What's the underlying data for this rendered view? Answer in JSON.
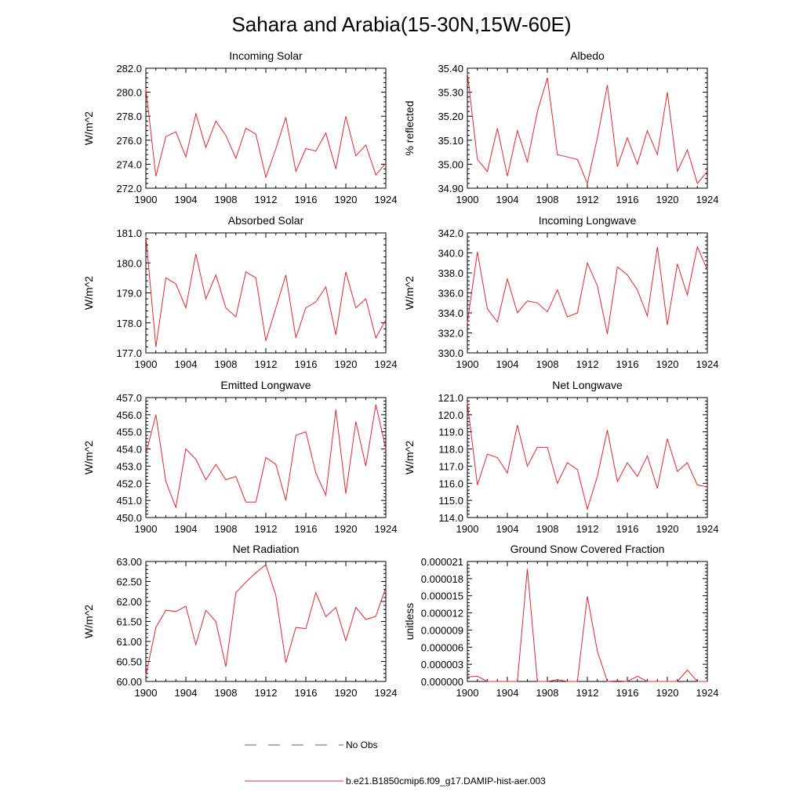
{
  "title": "Sahara and Arabia(15-30N,15W-60E)",
  "legend": {
    "entries": [
      {
        "label": "No Obs",
        "color": "#5a5aa8",
        "style": "dashed"
      },
      {
        "label": "b.e21.B1850cmip6.f09_g17.DAMIP-hist-aer.003",
        "color": "#e8242c",
        "style": "solid"
      }
    ]
  },
  "chart_data": [
    {
      "type": "line",
      "title": "Incoming Solar",
      "ylabel": "W/m^2",
      "xlim": [
        1900,
        1924
      ],
      "ylim": [
        272,
        282
      ],
      "xticks": [
        1900,
        1904,
        1908,
        1912,
        1916,
        1920,
        1924
      ],
      "yticks": [
        "272.0",
        "274.0",
        "276.0",
        "278.0",
        "280.0",
        "282.0"
      ],
      "series": [
        {
          "color": "#e8242c",
          "x": [
            1900,
            1901,
            1902,
            1903,
            1904,
            1905,
            1906,
            1907,
            1908,
            1909,
            1910,
            1911,
            1912,
            1913,
            1914,
            1915,
            1916,
            1917,
            1918,
            1919,
            1920,
            1921,
            1922,
            1923,
            1924
          ],
          "values": [
            280.3,
            273.0,
            276.3,
            276.7,
            274.6,
            278.2,
            275.4,
            277.6,
            276.4,
            274.5,
            277.0,
            276.5,
            272.9,
            275.3,
            277.9,
            273.4,
            275.3,
            275.1,
            276.6,
            273.6,
            278.0,
            274.7,
            275.6,
            273.1,
            274.1
          ]
        }
      ]
    },
    {
      "type": "line",
      "title": "Albedo",
      "ylabel": "% reflected",
      "xlim": [
        1900,
        1924
      ],
      "ylim": [
        34.9,
        35.4
      ],
      "xticks": [
        1900,
        1904,
        1908,
        1912,
        1916,
        1920,
        1924
      ],
      "yticks": [
        "34.90",
        "35.00",
        "35.10",
        "35.20",
        "35.30",
        "35.40"
      ],
      "series": [
        {
          "color": "#e8242c",
          "x": [
            1900,
            1901,
            1902,
            1903,
            1904,
            1905,
            1906,
            1907,
            1908,
            1909,
            1910,
            1911,
            1912,
            1913,
            1914,
            1915,
            1916,
            1917,
            1918,
            1919,
            1920,
            1921,
            1922,
            1923,
            1924
          ],
          "values": [
            35.38,
            35.02,
            34.97,
            35.15,
            34.95,
            35.14,
            35.01,
            35.22,
            35.36,
            35.04,
            35.03,
            35.02,
            34.92,
            35.11,
            35.33,
            34.99,
            35.11,
            35.0,
            35.14,
            35.04,
            35.3,
            34.97,
            35.06,
            34.92,
            34.97
          ]
        }
      ]
    },
    {
      "type": "line",
      "title": "Absorbed Solar",
      "ylabel": "W/m^2",
      "xlim": [
        1900,
        1924
      ],
      "ylim": [
        177,
        181
      ],
      "xticks": [
        1900,
        1904,
        1908,
        1912,
        1916,
        1920,
        1924
      ],
      "yticks": [
        "177.0",
        "178.0",
        "179.0",
        "180.0",
        "181.0"
      ],
      "series": [
        {
          "color": "#e8242c",
          "x": [
            1900,
            1901,
            1902,
            1903,
            1904,
            1905,
            1906,
            1907,
            1908,
            1909,
            1910,
            1911,
            1912,
            1913,
            1914,
            1915,
            1916,
            1917,
            1918,
            1919,
            1920,
            1921,
            1922,
            1923,
            1924
          ],
          "values": [
            180.9,
            177.2,
            179.5,
            179.3,
            178.5,
            180.3,
            178.8,
            179.6,
            178.5,
            178.2,
            179.7,
            179.5,
            177.4,
            178.5,
            179.6,
            177.5,
            178.5,
            178.7,
            179.2,
            177.6,
            179.7,
            178.5,
            178.8,
            177.5,
            178.1
          ]
        }
      ]
    },
    {
      "type": "line",
      "title": "Incoming Longwave",
      "ylabel": "W/m^2",
      "xlim": [
        1900,
        1924
      ],
      "ylim": [
        330,
        342
      ],
      "xticks": [
        1900,
        1904,
        1908,
        1912,
        1916,
        1920,
        1924
      ],
      "yticks": [
        "330.0",
        "332.0",
        "334.0",
        "336.0",
        "338.0",
        "340.0",
        "342.0"
      ],
      "series": [
        {
          "color": "#e8242c",
          "x": [
            1900,
            1901,
            1902,
            1903,
            1904,
            1905,
            1906,
            1907,
            1908,
            1909,
            1910,
            1911,
            1912,
            1913,
            1914,
            1915,
            1916,
            1917,
            1918,
            1919,
            1920,
            1921,
            1922,
            1923,
            1924
          ],
          "values": [
            333.0,
            340.1,
            334.4,
            333.1,
            337.4,
            334.0,
            335.2,
            335.0,
            334.1,
            336.3,
            333.6,
            334.0,
            339.0,
            336.7,
            331.9,
            338.6,
            337.8,
            336.3,
            333.7,
            340.6,
            332.8,
            338.9,
            335.8,
            340.6,
            338.3
          ]
        }
      ]
    },
    {
      "type": "line",
      "title": "Emitted Longwave",
      "ylabel": "W/m^2",
      "xlim": [
        1900,
        1924
      ],
      "ylim": [
        450,
        457
      ],
      "xticks": [
        1900,
        1904,
        1908,
        1912,
        1916,
        1920,
        1924
      ],
      "yticks": [
        "450.0",
        "451.0",
        "452.0",
        "453.0",
        "454.0",
        "455.0",
        "456.0",
        "457.0"
      ],
      "series": [
        {
          "color": "#e8242c",
          "x": [
            1900,
            1901,
            1902,
            1903,
            1904,
            1905,
            1906,
            1907,
            1908,
            1909,
            1910,
            1911,
            1912,
            1913,
            1914,
            1915,
            1916,
            1917,
            1918,
            1919,
            1920,
            1921,
            1922,
            1923,
            1924
          ],
          "values": [
            453.7,
            456.0,
            452.1,
            450.6,
            454.0,
            453.4,
            452.2,
            453.1,
            452.2,
            452.4,
            450.9,
            450.9,
            453.5,
            453.1,
            451.0,
            454.8,
            455.0,
            452.6,
            451.3,
            456.3,
            451.4,
            455.6,
            453.0,
            456.6,
            454.0
          ]
        }
      ]
    },
    {
      "type": "line",
      "title": "Net Longwave",
      "ylabel": "W/m^2",
      "xlim": [
        1900,
        1924
      ],
      "ylim": [
        114,
        121
      ],
      "xticks": [
        1900,
        1904,
        1908,
        1912,
        1916,
        1920,
        1924
      ],
      "yticks": [
        "114.0",
        "115.0",
        "116.0",
        "117.0",
        "118.0",
        "119.0",
        "120.0",
        "121.0"
      ],
      "series": [
        {
          "color": "#e8242c",
          "x": [
            1900,
            1901,
            1902,
            1903,
            1904,
            1905,
            1906,
            1907,
            1908,
            1909,
            1910,
            1911,
            1912,
            1913,
            1914,
            1915,
            1916,
            1917,
            1918,
            1919,
            1920,
            1921,
            1922,
            1923,
            1924
          ],
          "values": [
            120.7,
            115.9,
            117.7,
            117.5,
            116.6,
            119.4,
            117.0,
            118.1,
            118.1,
            116.0,
            117.2,
            116.8,
            114.5,
            116.4,
            119.1,
            116.1,
            117.2,
            116.4,
            117.6,
            115.7,
            118.6,
            116.7,
            117.2,
            115.9,
            115.8
          ]
        }
      ]
    },
    {
      "type": "line",
      "title": "Net Radiation",
      "ylabel": "W/m^2",
      "xlim": [
        1900,
        1924
      ],
      "ylim": [
        60,
        63
      ],
      "xticks": [
        1900,
        1904,
        1908,
        1912,
        1916,
        1920,
        1924
      ],
      "yticks": [
        "60.00",
        "60.50",
        "61.00",
        "61.50",
        "62.00",
        "62.50",
        "63.00"
      ],
      "series": [
        {
          "color": "#e8242c",
          "x": [
            1900,
            1901,
            1902,
            1903,
            1904,
            1905,
            1906,
            1907,
            1908,
            1909,
            1910,
            1911,
            1912,
            1913,
            1914,
            1915,
            1916,
            1917,
            1918,
            1919,
            1920,
            1921,
            1922,
            1923,
            1924
          ],
          "values": [
            60.15,
            61.35,
            61.78,
            61.75,
            61.88,
            60.92,
            61.78,
            61.5,
            60.37,
            62.22,
            62.48,
            62.72,
            62.92,
            62.15,
            60.47,
            61.35,
            61.32,
            62.22,
            61.62,
            61.85,
            61.02,
            61.85,
            61.55,
            61.63,
            62.35
          ]
        }
      ]
    },
    {
      "type": "line",
      "title": "Ground Snow Covered Fraction",
      "ylabel": "unitless",
      "xlim": [
        1900,
        1924
      ],
      "ylim": [
        0,
        2.1e-05
      ],
      "xticks": [
        1900,
        1904,
        1908,
        1912,
        1916,
        1920,
        1924
      ],
      "yticks": [
        "0.000000",
        "0.000003",
        "0.000006",
        "0.000009",
        "0.000012",
        "0.000015",
        "0.000018",
        "0.000021"
      ],
      "series": [
        {
          "color": "#e8242c",
          "x": [
            1900,
            1901,
            1902,
            1903,
            1904,
            1905,
            1906,
            1907,
            1908,
            1909,
            1910,
            1911,
            1912,
            1913,
            1914,
            1915,
            1916,
            1917,
            1918,
            1919,
            1920,
            1921,
            1922,
            1923,
            1924
          ],
          "values": [
            8e-07,
            9e-07,
            0,
            0,
            0,
            0,
            1.97e-05,
            0,
            0,
            3e-07,
            0,
            0,
            1.49e-05,
            5.3e-06,
            0,
            1e-07,
            0,
            9e-07,
            0,
            0,
            0,
            0,
            2e-06,
            0,
            0
          ]
        }
      ]
    }
  ]
}
